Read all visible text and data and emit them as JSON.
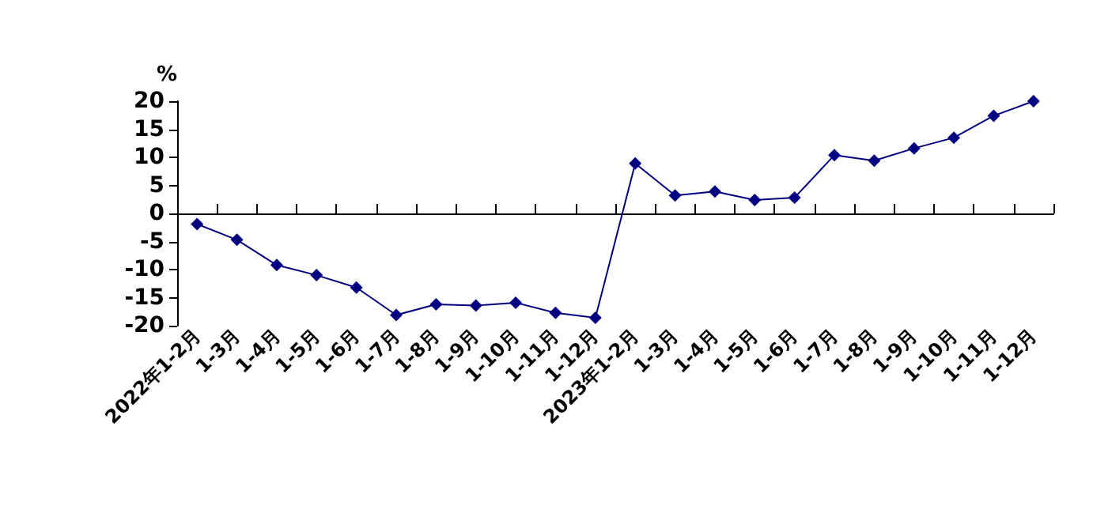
{
  "chart_data": {
    "type": "line",
    "ylabel": "%",
    "categories": [
      "2022年1-2月",
      "1-3月",
      "1-4月",
      "1-5月",
      "1-6月",
      "1-7月",
      "1-8月",
      "1-9月",
      "1-10月",
      "1-11月",
      "1-12月",
      "2023年1-2月",
      "1-3月",
      "1-4月",
      "1-5月",
      "1-6月",
      "1-7月",
      "1-8月",
      "1-9月",
      "1-10月",
      "1-11月",
      "1-12月"
    ],
    "series": [
      {
        "color": "#000080",
        "values": [
          -1.9,
          -4.7,
          -9.2,
          -11.0,
          -13.2,
          -18.1,
          -16.2,
          -16.4,
          -15.9,
          -17.7,
          -18.6,
          8.9,
          3.2,
          3.9,
          2.4,
          2.8,
          10.4,
          9.4,
          11.6,
          13.5,
          17.4,
          20
        ]
      }
    ],
    "ylim": [
      -20,
      20
    ],
    "yticks": [
      -20,
      -15,
      -10,
      -5,
      0,
      5,
      10,
      15,
      20
    ],
    "marker": "diamond",
    "line_style": "solid"
  }
}
